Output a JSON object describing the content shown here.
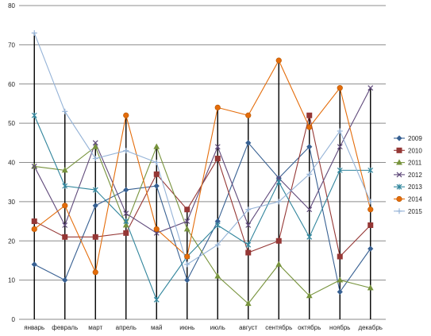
{
  "chart_data": {
    "type": "line",
    "title": "",
    "xlabel": "",
    "ylabel": "",
    "ylim": [
      0,
      80
    ],
    "yticks": [
      0,
      10,
      20,
      30,
      40,
      50,
      60,
      70,
      80
    ],
    "grid": "horizontal",
    "legend": "right",
    "categories": [
      "январь",
      "февраль",
      "март",
      "апрель",
      "май",
      "июнь",
      "июль",
      "август",
      "сентябрь",
      "октябрь",
      "ноябрь",
      "декабрь"
    ],
    "series": [
      {
        "name": "2009",
        "color": "#376092",
        "marker": "diamond",
        "values": [
          14,
          10,
          29,
          33,
          34,
          10,
          25,
          45,
          36,
          44,
          7,
          18
        ]
      },
      {
        "name": "2010",
        "color": "#953735",
        "marker": "square",
        "values": [
          25,
          21,
          21,
          22,
          37,
          28,
          41,
          17,
          20,
          52,
          16,
          24
        ]
      },
      {
        "name": "2011",
        "color": "#77933C",
        "marker": "triangle",
        "values": [
          39,
          38,
          44,
          24,
          44,
          23,
          11,
          4,
          14,
          6,
          10,
          8
        ]
      },
      {
        "name": "2012",
        "color": "#604A7B",
        "marker": "x",
        "values": [
          39,
          24,
          45,
          27,
          22,
          25,
          44,
          24,
          36,
          28,
          44,
          59
        ]
      },
      {
        "name": "2013",
        "color": "#31859C",
        "marker": "star",
        "values": [
          52,
          34,
          33,
          25,
          5,
          16,
          24,
          19,
          35,
          21,
          38,
          38
        ]
      },
      {
        "name": "2014",
        "color": "#E46C0A",
        "marker": "circle",
        "values": [
          23,
          29,
          12,
          52,
          23,
          16,
          54,
          52,
          66,
          49,
          59,
          28
        ]
      },
      {
        "name": "2015",
        "color": "#95B3D7",
        "marker": "plus",
        "values": [
          73,
          53,
          41,
          43,
          40,
          14,
          19,
          28,
          30,
          37,
          48,
          30
        ]
      }
    ]
  }
}
